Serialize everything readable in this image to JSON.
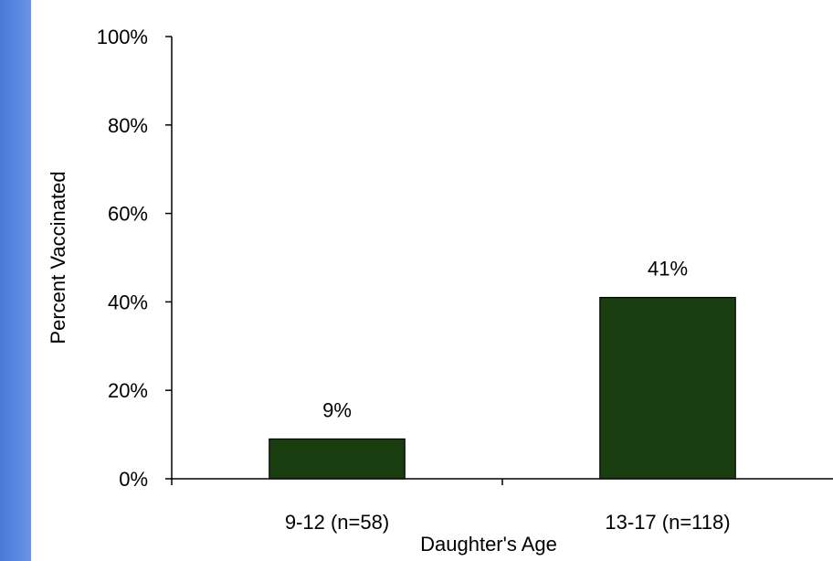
{
  "chart_data": {
    "type": "bar",
    "categories": [
      "9-12 (n=58)",
      "13-17 (n=118)"
    ],
    "values": [
      9,
      41
    ],
    "data_labels": [
      "9%",
      "41%"
    ],
    "title": "",
    "xlabel": "Daughter's Age",
    "ylabel": "Percent Vaccinated",
    "ylim": [
      0,
      100
    ],
    "yticks": [
      "0%",
      "20%",
      "40%",
      "60%",
      "80%",
      "100%"
    ],
    "grid": false,
    "legend": "none",
    "bar_color": "#1a3d0f"
  },
  "decor": {
    "side_band_color": "#5b88e0"
  }
}
